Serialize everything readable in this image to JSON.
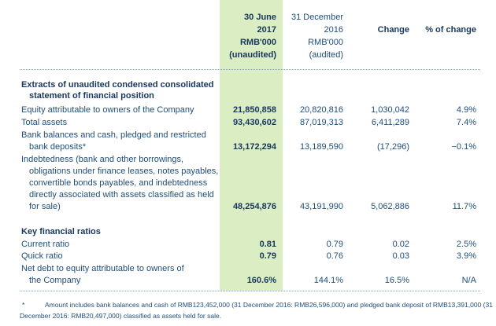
{
  "header": {
    "col_2017": [
      "30 June",
      "2017",
      "RMB'000",
      "(unaudited)"
    ],
    "col_2016": [
      "31 December",
      "2016",
      "RMB'000",
      "(audited)"
    ],
    "col_change": "Change",
    "col_pct": "% of change"
  },
  "section1": {
    "title_line1": "Extracts of unaudited condensed consolidated",
    "title_line2": "statement of financial position"
  },
  "rows": {
    "equity": {
      "label": "Equity attributable to owners of the Company",
      "v2017": "21,850,858",
      "v2016": "20,820,816",
      "change": "1,030,042",
      "pct": "4.9%"
    },
    "assets": {
      "label": "Total assets",
      "v2017": "93,430,602",
      "v2016": "87,019,313",
      "change": "6,411,289",
      "pct": "7.4%"
    },
    "bank": {
      "label1": "Bank balances and cash, pledged and restricted",
      "label2": "bank deposits*",
      "v2017": "13,172,294",
      "v2016": "13,189,590",
      "change": "(17,296)",
      "pct": "−0.1%"
    },
    "debt": {
      "label1": "Indebtedness (bank and other borrowings,",
      "label2": "obligations under finance leases, notes payables,",
      "label3": "convertible bonds payables, and indebtedness",
      "label4": "directly associated with assets classified as held",
      "label5": "for sale)",
      "v2017": "48,254,876",
      "v2016": "43,191,990",
      "change": "5,062,886",
      "pct": "11.7%"
    }
  },
  "section2": {
    "title": "Key financial ratios"
  },
  "ratios": {
    "current": {
      "label": "Current ratio",
      "v2017": "0.81",
      "v2016": "0.79",
      "change": "0.02",
      "pct": "2.5%"
    },
    "quick": {
      "label": "Quick ratio",
      "v2017": "0.79",
      "v2016": "0.76",
      "change": "0.03",
      "pct": "3.9%"
    },
    "netdebt": {
      "label1": "Net debt to equity attributable to owners of",
      "label2": "the Company",
      "v2017": "160.6%",
      "v2016": "144.1%",
      "change": "16.5%",
      "pct": "N/A"
    }
  },
  "footnote": {
    "mark": "*",
    "line1": "Amount includes bank balances and cash of RMB123,452,000 (31 December 2016: RMB26,596,000) and pledged bank deposit of RMB13,391,000 (31",
    "line2": "December 2016: RMB20,497,000) classified as assets held for sale."
  },
  "colors": {
    "highlight": "#dbedc2",
    "text": "#1f4e79",
    "bold": "#17375e"
  }
}
